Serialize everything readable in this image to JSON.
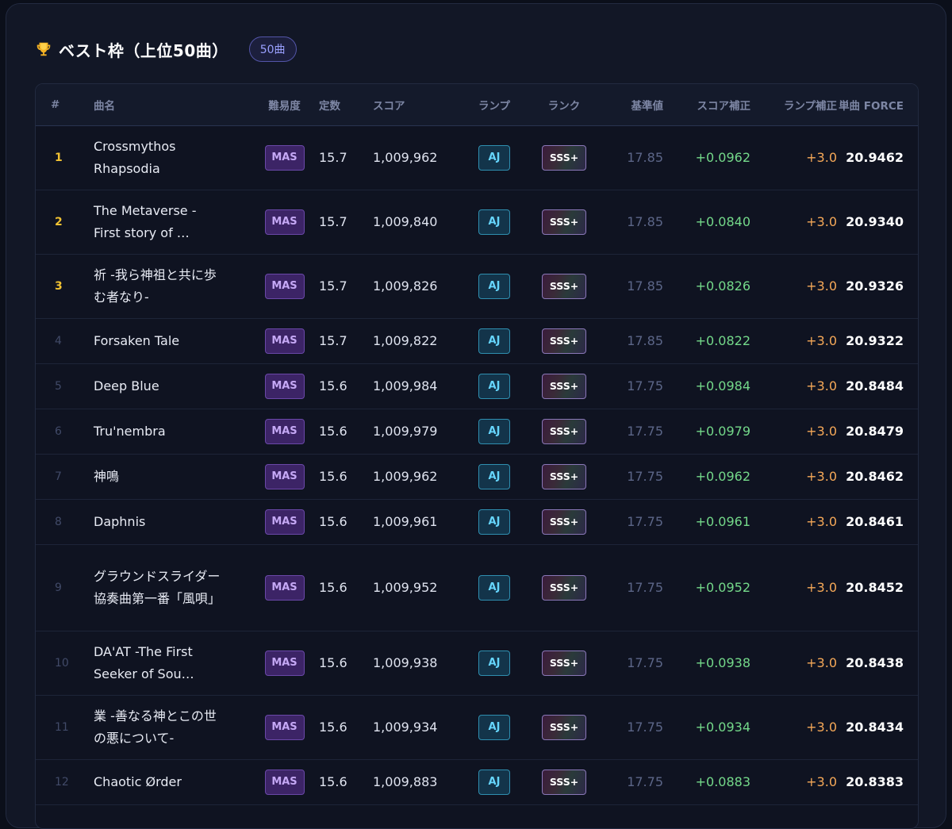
{
  "section": {
    "title": "ベスト枠（上位50曲）",
    "count_badge": "50曲"
  },
  "table": {
    "headers": {
      "rank": "#",
      "song": "曲名",
      "difficulty": "難易度",
      "constant": "定数",
      "score": "スコア",
      "lamp": "ランプ",
      "rank_grade": "ランク",
      "base": "基準値",
      "score_corr": "スコア補正",
      "lamp_corr": "ランプ補正",
      "force": "単曲 FORCE"
    },
    "rows": [
      {
        "rank": "1",
        "title": "Crossmythos Rhapsodia",
        "difficulty": "MAS",
        "constant": "15.7",
        "score": "1,009,962",
        "lamp": "AJ",
        "grade": "SSS+",
        "base": "17.85",
        "score_corr": "+0.0962",
        "lamp_corr": "+3.0",
        "force": "20.9462"
      },
      {
        "rank": "2",
        "title": "The Metaverse -First story of …",
        "difficulty": "MAS",
        "constant": "15.7",
        "score": "1,009,840",
        "lamp": "AJ",
        "grade": "SSS+",
        "base": "17.85",
        "score_corr": "+0.0840",
        "lamp_corr": "+3.0",
        "force": "20.9340"
      },
      {
        "rank": "3",
        "title": "祈 -我ら神祖と共に歩む者なり-",
        "difficulty": "MAS",
        "constant": "15.7",
        "score": "1,009,826",
        "lamp": "AJ",
        "grade": "SSS+",
        "base": "17.85",
        "score_corr": "+0.0826",
        "lamp_corr": "+3.0",
        "force": "20.9326"
      },
      {
        "rank": "4",
        "title": "Forsaken Tale",
        "difficulty": "MAS",
        "constant": "15.7",
        "score": "1,009,822",
        "lamp": "AJ",
        "grade": "SSS+",
        "base": "17.85",
        "score_corr": "+0.0822",
        "lamp_corr": "+3.0",
        "force": "20.9322"
      },
      {
        "rank": "5",
        "title": "Deep Blue",
        "difficulty": "MAS",
        "constant": "15.6",
        "score": "1,009,984",
        "lamp": "AJ",
        "grade": "SSS+",
        "base": "17.75",
        "score_corr": "+0.0984",
        "lamp_corr": "+3.0",
        "force": "20.8484"
      },
      {
        "rank": "6",
        "title": "Tru'nembra",
        "difficulty": "MAS",
        "constant": "15.6",
        "score": "1,009,979",
        "lamp": "AJ",
        "grade": "SSS+",
        "base": "17.75",
        "score_corr": "+0.0979",
        "lamp_corr": "+3.0",
        "force": "20.8479"
      },
      {
        "rank": "7",
        "title": "神鳴",
        "difficulty": "MAS",
        "constant": "15.6",
        "score": "1,009,962",
        "lamp": "AJ",
        "grade": "SSS+",
        "base": "17.75",
        "score_corr": "+0.0962",
        "lamp_corr": "+3.0",
        "force": "20.8462"
      },
      {
        "rank": "8",
        "title": "Daphnis",
        "difficulty": "MAS",
        "constant": "15.6",
        "score": "1,009,961",
        "lamp": "AJ",
        "grade": "SSS+",
        "base": "17.75",
        "score_corr": "+0.0961",
        "lamp_corr": "+3.0",
        "force": "20.8461"
      },
      {
        "rank": "9",
        "title": "グラウンドスライダー協奏曲第一番「風唄」",
        "difficulty": "MAS",
        "constant": "15.6",
        "score": "1,009,952",
        "lamp": "AJ",
        "grade": "SSS+",
        "base": "17.75",
        "score_corr": "+0.0952",
        "lamp_corr": "+3.0",
        "force": "20.8452"
      },
      {
        "rank": "10",
        "title": "DA'AT -The First Seeker of Sou…",
        "difficulty": "MAS",
        "constant": "15.6",
        "score": "1,009,938",
        "lamp": "AJ",
        "grade": "SSS+",
        "base": "17.75",
        "score_corr": "+0.0938",
        "lamp_corr": "+3.0",
        "force": "20.8438"
      },
      {
        "rank": "11",
        "title": "業 -善なる神とこの世の悪について-",
        "difficulty": "MAS",
        "constant": "15.6",
        "score": "1,009,934",
        "lamp": "AJ",
        "grade": "SSS+",
        "base": "17.75",
        "score_corr": "+0.0934",
        "lamp_corr": "+3.0",
        "force": "20.8434"
      },
      {
        "rank": "12",
        "title": "Chaotic Ørder",
        "difficulty": "MAS",
        "constant": "15.6",
        "score": "1,009,883",
        "lamp": "AJ",
        "grade": "SSS+",
        "base": "17.75",
        "score_corr": "+0.0883",
        "lamp_corr": "+3.0",
        "force": "20.8383"
      }
    ]
  },
  "icons": {
    "trophy": "trophy-icon"
  },
  "colors": {
    "top_rank": "#f1c232",
    "score_correction": "#74d98a",
    "lamp_correction": "#f5a858",
    "badge_accent": "#9aa0ff"
  }
}
